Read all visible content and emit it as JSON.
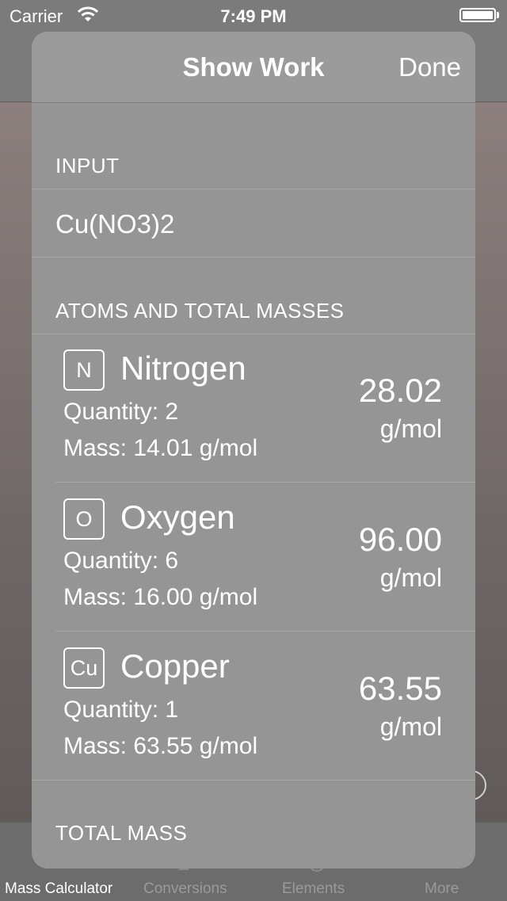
{
  "status_bar": {
    "carrier": "Carrier",
    "time": "7:49 PM"
  },
  "sheet": {
    "title": "Show Work",
    "done_label": "Done",
    "input_header": "INPUT",
    "input_value": "Cu(NO3)2",
    "atoms_header": "ATOMS AND TOTAL MASSES",
    "atoms": [
      {
        "symbol": "N",
        "name": "Nitrogen",
        "quantity": "Quantity: 2",
        "mass": "Mass: 14.01 g/mol",
        "total": "28.02",
        "unit": "g/mol"
      },
      {
        "symbol": "O",
        "name": "Oxygen",
        "quantity": "Quantity: 6",
        "mass": "Mass: 16.00 g/mol",
        "total": "96.00",
        "unit": "g/mol"
      },
      {
        "symbol": "Cu",
        "name": "Copper",
        "quantity": "Quantity: 1",
        "mass": "Mass: 63.55 g/mol",
        "total": "63.55",
        "unit": "g/mol"
      }
    ],
    "total_header": "TOTAL MASS"
  },
  "tab_bar": {
    "items": [
      {
        "label": "Mass Calculator"
      },
      {
        "label": "Conversions"
      },
      {
        "label": "Elements"
      },
      {
        "label": "More"
      }
    ]
  }
}
